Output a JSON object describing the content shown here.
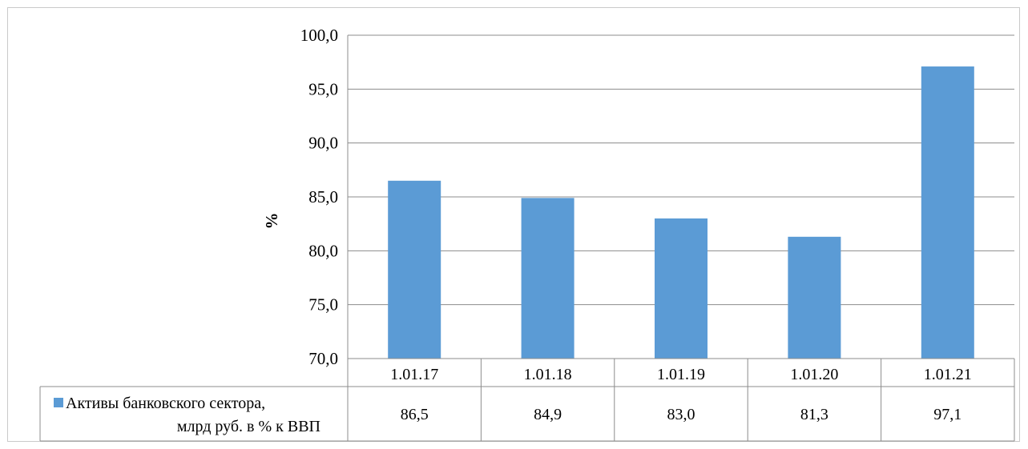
{
  "chart_data": {
    "type": "bar",
    "categories": [
      "1.01.17",
      "1.01.18",
      "1.01.19",
      "1.01.20",
      "1.01.21"
    ],
    "series": [
      {
        "name_lines": [
          "Активы  банковского сектора,",
          "млрд руб. в % к ВВП"
        ],
        "values": [
          86.5,
          84.9,
          83.0,
          81.3,
          97.1
        ],
        "value_labels": [
          "86,5",
          "84,9",
          "83,0",
          "81,3",
          "97,1"
        ],
        "color": "#5b9bd5"
      }
    ],
    "ylabel": "%",
    "ylim": [
      70,
      100
    ],
    "yticks": [
      "70,0",
      "75,0",
      "80,0",
      "85,0",
      "90,0",
      "95,0",
      "100,0"
    ],
    "ytick_values": [
      70,
      75,
      80,
      85,
      90,
      95,
      100
    ],
    "grid": true,
    "data_table": true
  }
}
